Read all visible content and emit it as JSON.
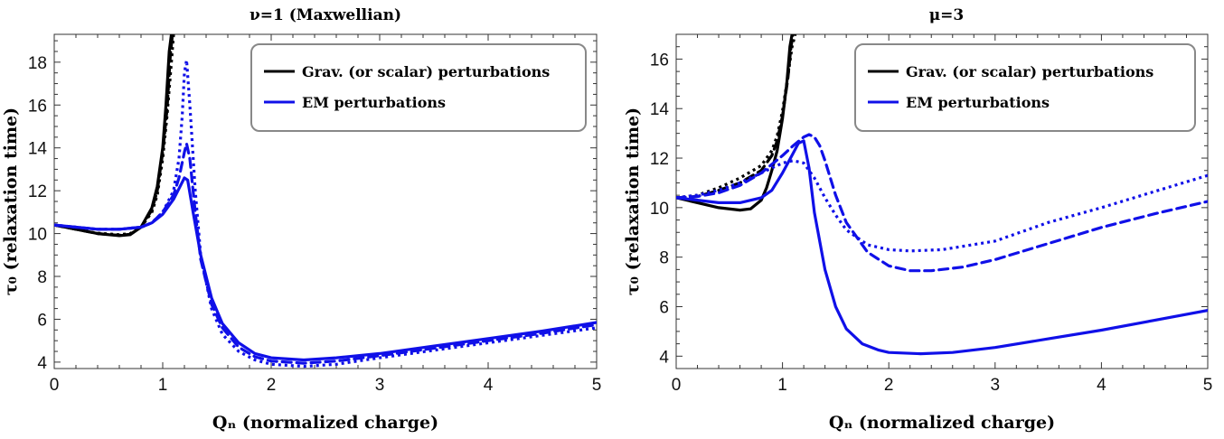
{
  "chart_data": [
    {
      "type": "line",
      "title": "ν=1 (Maxwellian)",
      "xlabel": "Qₙ (normalized charge)",
      "ylabel": "τ₀ (relaxation time)",
      "xlim": [
        0,
        5
      ],
      "ylim": [
        3.7,
        19.3
      ],
      "xticks": [
        0,
        1,
        2,
        3,
        4,
        5
      ],
      "yticks": [
        4,
        6,
        8,
        10,
        12,
        14,
        16,
        18
      ],
      "grid": false,
      "legend_position": "top-right",
      "legend": [
        {
          "label": "Grav. (or scalar) perturbations",
          "color": "#000000"
        },
        {
          "label": "EM perturbations",
          "color": "#1010e8"
        }
      ],
      "series": [
        {
          "color": "#000000",
          "style": "solid",
          "x": [
            0,
            0.2,
            0.4,
            0.6,
            0.7,
            0.8,
            0.9,
            0.95,
            1.0,
            1.03,
            1.06,
            1.08
          ],
          "y": [
            10.4,
            10.2,
            10.0,
            9.9,
            9.95,
            10.3,
            11.2,
            12.2,
            14.0,
            16.0,
            18.5,
            19.3
          ]
        },
        {
          "color": "#000000",
          "style": "dashed",
          "x": [
            0,
            0.2,
            0.4,
            0.6,
            0.7,
            0.8,
            0.9,
            0.95,
            1.0,
            1.04,
            1.07,
            1.09
          ],
          "y": [
            10.4,
            10.2,
            10.0,
            9.92,
            9.97,
            10.3,
            11.1,
            12.0,
            13.8,
            15.8,
            18.3,
            19.3
          ]
        },
        {
          "color": "#000000",
          "style": "dotted",
          "x": [
            0,
            0.2,
            0.4,
            0.6,
            0.7,
            0.8,
            0.9,
            0.95,
            1.0,
            1.04,
            1.08,
            1.1
          ],
          "y": [
            10.4,
            10.2,
            10.02,
            9.95,
            10.0,
            10.3,
            11.0,
            11.8,
            13.5,
            15.5,
            18.0,
            19.3
          ]
        },
        {
          "color": "#1010e8",
          "style": "solid",
          "x": [
            0,
            0.2,
            0.4,
            0.6,
            0.8,
            0.9,
            1.0,
            1.1,
            1.15,
            1.2,
            1.23,
            1.28,
            1.35,
            1.45,
            1.55,
            1.7,
            1.85,
            2.0,
            2.3,
            2.6,
            3.0,
            3.5,
            4.0,
            4.5,
            5.0
          ],
          "y": [
            10.4,
            10.3,
            10.2,
            10.2,
            10.3,
            10.5,
            10.9,
            11.6,
            12.1,
            12.6,
            12.5,
            11.0,
            9.0,
            7.0,
            5.8,
            4.9,
            4.4,
            4.2,
            4.1,
            4.2,
            4.4,
            4.75,
            5.1,
            5.45,
            5.85
          ]
        },
        {
          "color": "#1010e8",
          "style": "dashed",
          "x": [
            0,
            0.2,
            0.4,
            0.6,
            0.8,
            0.9,
            1.0,
            1.1,
            1.15,
            1.2,
            1.22,
            1.25,
            1.3,
            1.35,
            1.45,
            1.55,
            1.7,
            1.85,
            2.0,
            2.3,
            2.6,
            3.0,
            3.5,
            4.0,
            4.5,
            5.0
          ],
          "y": [
            10.4,
            10.3,
            10.2,
            10.2,
            10.3,
            10.5,
            11.0,
            11.8,
            12.6,
            13.8,
            14.2,
            13.5,
            11.0,
            8.8,
            6.7,
            5.6,
            4.7,
            4.25,
            4.05,
            3.95,
            4.05,
            4.3,
            4.65,
            5.0,
            5.35,
            5.75
          ]
        },
        {
          "color": "#1010e8",
          "style": "dotted",
          "x": [
            0,
            0.2,
            0.4,
            0.6,
            0.8,
            0.9,
            1.0,
            1.1,
            1.15,
            1.18,
            1.2,
            1.22,
            1.25,
            1.3,
            1.35,
            1.45,
            1.55,
            1.7,
            1.85,
            2.0,
            2.3,
            2.6,
            3.0,
            3.5,
            4.0,
            4.5,
            5.0
          ],
          "y": [
            10.4,
            10.3,
            10.2,
            10.2,
            10.3,
            10.5,
            11.0,
            12.0,
            13.5,
            15.5,
            17.5,
            18.1,
            16.0,
            12.0,
            9.0,
            6.5,
            5.3,
            4.5,
            4.1,
            3.9,
            3.8,
            3.9,
            4.2,
            4.55,
            4.9,
            5.25,
            5.6
          ]
        }
      ]
    },
    {
      "type": "line",
      "title": "μ=3",
      "xlabel": "Qₙ (normalized charge)",
      "ylabel": "τ₀ (relaxation time)",
      "xlim": [
        0,
        5
      ],
      "ylim": [
        3.5,
        17.0
      ],
      "xticks": [
        0,
        1,
        2,
        3,
        4,
        5
      ],
      "yticks": [
        4,
        6,
        8,
        10,
        12,
        14,
        16
      ],
      "grid": false,
      "legend_position": "top-right",
      "legend": [
        {
          "label": "Grav. (or scalar) perturbations",
          "color": "#000000"
        },
        {
          "label": "EM perturbations",
          "color": "#1010e8"
        }
      ],
      "series": [
        {
          "color": "#000000",
          "style": "solid",
          "x": [
            0,
            0.2,
            0.4,
            0.6,
            0.7,
            0.8,
            0.85,
            0.9,
            0.95,
            1.0,
            1.04,
            1.07,
            1.09
          ],
          "y": [
            10.4,
            10.2,
            10.0,
            9.9,
            9.95,
            10.3,
            10.8,
            11.5,
            12.3,
            13.6,
            15.0,
            16.5,
            17.0
          ]
        },
        {
          "color": "#000000",
          "style": "dashed",
          "x": [
            0,
            0.2,
            0.4,
            0.6,
            0.8,
            0.9,
            0.95,
            1.0,
            1.05,
            1.08,
            1.1
          ],
          "y": [
            10.4,
            10.45,
            10.7,
            11.0,
            11.5,
            12.1,
            12.7,
            13.7,
            15.2,
            16.5,
            17.0
          ]
        },
        {
          "color": "#000000",
          "style": "dotted",
          "x": [
            0,
            0.2,
            0.4,
            0.6,
            0.8,
            0.9,
            0.95,
            1.0,
            1.05,
            1.09,
            1.12
          ],
          "y": [
            10.4,
            10.5,
            10.8,
            11.2,
            11.7,
            12.3,
            12.9,
            13.9,
            15.3,
            16.5,
            17.0
          ]
        },
        {
          "color": "#1010e8",
          "style": "solid",
          "x": [
            0,
            0.2,
            0.4,
            0.6,
            0.8,
            0.9,
            1.0,
            1.1,
            1.15,
            1.2,
            1.25,
            1.3,
            1.4,
            1.5,
            1.6,
            1.75,
            1.9,
            2.0,
            2.3,
            2.6,
            3.0,
            3.5,
            4.0,
            4.5,
            5.0
          ],
          "y": [
            10.4,
            10.3,
            10.2,
            10.2,
            10.4,
            10.7,
            11.4,
            12.2,
            12.6,
            12.7,
            11.6,
            9.8,
            7.5,
            6.0,
            5.1,
            4.5,
            4.25,
            4.15,
            4.1,
            4.15,
            4.35,
            4.7,
            5.05,
            5.45,
            5.85
          ]
        },
        {
          "color": "#1010e8",
          "style": "dashed",
          "x": [
            0,
            0.2,
            0.4,
            0.6,
            0.8,
            1.0,
            1.1,
            1.2,
            1.25,
            1.3,
            1.35,
            1.4,
            1.5,
            1.6,
            1.8,
            2.0,
            2.2,
            2.4,
            2.7,
            3.0,
            3.5,
            4.0,
            4.5,
            5.0
          ],
          "y": [
            10.4,
            10.45,
            10.6,
            10.9,
            11.4,
            12.1,
            12.5,
            12.85,
            12.95,
            12.85,
            12.5,
            11.9,
            10.5,
            9.4,
            8.2,
            7.65,
            7.45,
            7.45,
            7.6,
            7.9,
            8.55,
            9.2,
            9.75,
            10.25
          ]
        },
        {
          "color": "#1010e8",
          "style": "dotted",
          "x": [
            0,
            0.2,
            0.4,
            0.6,
            0.8,
            1.0,
            1.1,
            1.2,
            1.3,
            1.4,
            1.5,
            1.6,
            1.8,
            2.0,
            2.2,
            2.5,
            3.0,
            3.5,
            4.0,
            4.5,
            5.0
          ],
          "y": [
            10.4,
            10.5,
            10.7,
            11.0,
            11.4,
            11.8,
            11.9,
            11.8,
            11.2,
            10.4,
            9.7,
            9.1,
            8.5,
            8.3,
            8.25,
            8.3,
            8.65,
            9.4,
            10.0,
            10.65,
            11.3
          ]
        }
      ]
    }
  ]
}
